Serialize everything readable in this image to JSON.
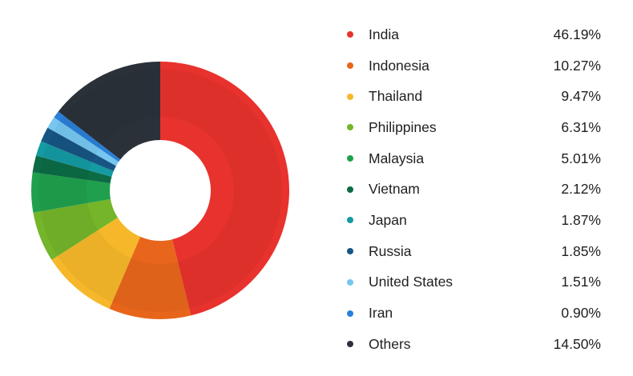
{
  "chart_data": {
    "type": "pie",
    "variant": "donut",
    "start_angle": "top, clockwise",
    "legend_position": "right",
    "slices": [
      {
        "label": "India",
        "value": 46.19,
        "display": "46.19%",
        "color": "#e8322d"
      },
      {
        "label": "Indonesia",
        "value": 10.27,
        "display": "10.27%",
        "color": "#e8661b"
      },
      {
        "label": "Thailand",
        "value": 9.47,
        "display": "9.47%",
        "color": "#f6b82a"
      },
      {
        "label": "Philippines",
        "value": 6.31,
        "display": "6.31%",
        "color": "#74b52a"
      },
      {
        "label": "Malaysia",
        "value": 5.01,
        "display": "5.01%",
        "color": "#20a04d"
      },
      {
        "label": "Vietnam",
        "value": 2.12,
        "display": "2.12%",
        "color": "#0c6b45"
      },
      {
        "label": "Japan",
        "value": 1.87,
        "display": "1.87%",
        "color": "#149aa3"
      },
      {
        "label": "Russia",
        "value": 1.85,
        "display": "1.85%",
        "color": "#175584"
      },
      {
        "label": "United States",
        "value": 1.51,
        "display": "1.51%",
        "color": "#76c6f0"
      },
      {
        "label": "Iran",
        "value": 0.9,
        "display": "0.90%",
        "color": "#2a7fd8"
      },
      {
        "label": "Others",
        "value": 14.5,
        "display": "14.50%",
        "color": "#2b3139"
      }
    ]
  }
}
